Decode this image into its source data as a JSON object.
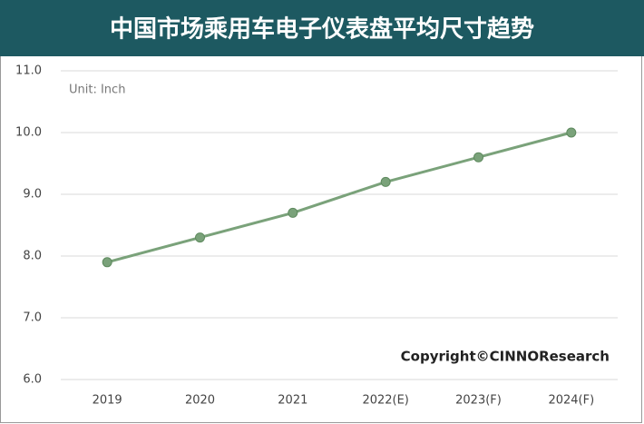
{
  "chart_data": {
    "type": "line",
    "title": "中国市场乘用车电子仪表盘平均尺寸趋势",
    "annotations": [
      "Unit: Inch",
      "Copyright©CINNOResearch"
    ],
    "categories": [
      "2019",
      "2020",
      "2021",
      "2022(E)",
      "2023(F)",
      "2024(F)"
    ],
    "series": [
      {
        "color": "#7aa27a",
        "values": [
          7.9,
          8.3,
          8.7,
          9.2,
          9.6,
          10.0
        ]
      }
    ],
    "ylim": [
      6,
      11
    ],
    "yticks": [
      {
        "value": 6,
        "label": "6.0"
      },
      {
        "value": 7,
        "label": "7.0"
      },
      {
        "value": 8,
        "label": "8.0"
      },
      {
        "value": 9,
        "label": "9.0"
      },
      {
        "value": 10,
        "label": "10.0"
      },
      {
        "value": 11,
        "label": "11.0"
      }
    ],
    "grid": true
  }
}
